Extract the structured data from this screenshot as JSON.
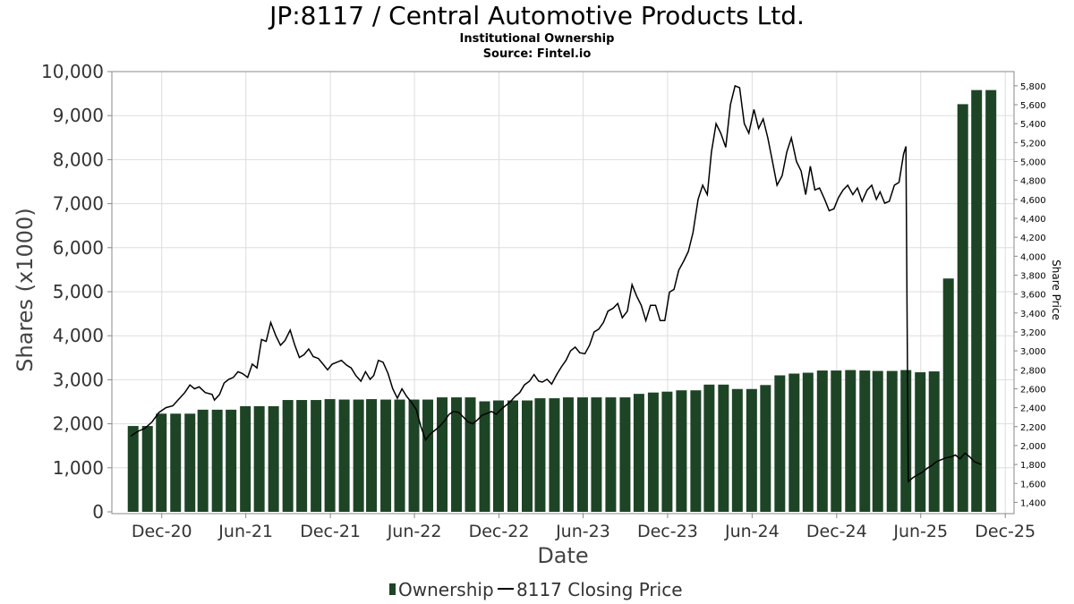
{
  "title": "JP:8117 / Central Automotive Products Ltd.",
  "subtitle": "Institutional Ownership",
  "source": "Source: Fintel.io",
  "colors": {
    "bar": "#1e4426",
    "bar_side": "#b0b0b0",
    "line": "#000000",
    "grid": "#dddddd"
  },
  "chart_data": {
    "type": "bar",
    "xlabel": "Date",
    "ylabel": "Shares (x1000)",
    "y2label": "Share Price",
    "ylim": [
      0,
      10000
    ],
    "y2lim": [
      1300,
      5950
    ],
    "yticks": [
      "0",
      "1,000",
      "2,000",
      "3,000",
      "4,000",
      "5,000",
      "6,000",
      "7,000",
      "8,000",
      "9,000",
      "10,000"
    ],
    "y2ticks": [
      "1,400",
      "1,600",
      "1,800",
      "2,000",
      "2,200",
      "2,400",
      "2,600",
      "2,800",
      "3,000",
      "3,200",
      "3,400",
      "3,600",
      "3,800",
      "4,000",
      "4,200",
      "4,400",
      "4,600",
      "4,800",
      "5,000",
      "5,200",
      "5,400",
      "5,600",
      "5,800"
    ],
    "xrange": [
      "2020-08-15",
      "2025-12-20"
    ],
    "xticks": [
      {
        "label": "Dec-20",
        "date": "2020-12-01"
      },
      {
        "label": "Jun-21",
        "date": "2021-06-01"
      },
      {
        "label": "Dec-21",
        "date": "2021-12-01"
      },
      {
        "label": "Jun-22",
        "date": "2022-06-01"
      },
      {
        "label": "Dec-22",
        "date": "2022-12-01"
      },
      {
        "label": "Jun-23",
        "date": "2023-06-01"
      },
      {
        "label": "Dec-23",
        "date": "2023-12-01"
      },
      {
        "label": "Jun-24",
        "date": "2024-06-01"
      },
      {
        "label": "Dec-24",
        "date": "2024-12-01"
      },
      {
        "label": "Jun-25",
        "date": "2025-06-01"
      },
      {
        "label": "Dec-25",
        "date": "2025-12-01"
      }
    ],
    "legend": {
      "placement": "bottom",
      "ownership": "Ownership",
      "price": "8117 Closing Price"
    },
    "series": [
      {
        "name": "Ownership",
        "type": "bar",
        "points": [
          [
            "2020-09-30",
            1950
          ],
          [
            "2020-10-31",
            1950
          ],
          [
            "2020-11-30",
            2230
          ],
          [
            "2020-12-31",
            2230
          ],
          [
            "2021-01-31",
            2230
          ],
          [
            "2021-02-28",
            2320
          ],
          [
            "2021-03-31",
            2320
          ],
          [
            "2021-04-30",
            2320
          ],
          [
            "2021-05-31",
            2400
          ],
          [
            "2021-06-30",
            2400
          ],
          [
            "2021-07-31",
            2400
          ],
          [
            "2021-08-31",
            2540
          ],
          [
            "2021-09-30",
            2540
          ],
          [
            "2021-10-31",
            2540
          ],
          [
            "2021-11-30",
            2560
          ],
          [
            "2021-12-31",
            2550
          ],
          [
            "2022-01-31",
            2550
          ],
          [
            "2022-02-28",
            2560
          ],
          [
            "2022-03-31",
            2550
          ],
          [
            "2022-04-30",
            2550
          ],
          [
            "2022-05-31",
            2550
          ],
          [
            "2022-06-30",
            2550
          ],
          [
            "2022-07-31",
            2600
          ],
          [
            "2022-08-31",
            2600
          ],
          [
            "2022-09-30",
            2600
          ],
          [
            "2022-10-31",
            2510
          ],
          [
            "2022-11-30",
            2530
          ],
          [
            "2022-12-31",
            2530
          ],
          [
            "2023-01-31",
            2530
          ],
          [
            "2023-02-28",
            2580
          ],
          [
            "2023-03-31",
            2580
          ],
          [
            "2023-04-30",
            2600
          ],
          [
            "2023-05-31",
            2600
          ],
          [
            "2023-06-30",
            2600
          ],
          [
            "2023-07-31",
            2600
          ],
          [
            "2023-08-31",
            2600
          ],
          [
            "2023-09-30",
            2680
          ],
          [
            "2023-10-31",
            2710
          ],
          [
            "2023-11-30",
            2730
          ],
          [
            "2023-12-31",
            2760
          ],
          [
            "2024-01-31",
            2760
          ],
          [
            "2024-02-29",
            2890
          ],
          [
            "2024-03-31",
            2890
          ],
          [
            "2024-04-30",
            2790
          ],
          [
            "2024-05-31",
            2790
          ],
          [
            "2024-06-30",
            2880
          ],
          [
            "2024-07-31",
            3100
          ],
          [
            "2024-08-31",
            3140
          ],
          [
            "2024-09-30",
            3160
          ],
          [
            "2024-10-31",
            3210
          ],
          [
            "2024-11-30",
            3210
          ],
          [
            "2024-12-31",
            3220
          ],
          [
            "2025-01-31",
            3210
          ],
          [
            "2025-02-28",
            3200
          ],
          [
            "2025-03-31",
            3200
          ],
          [
            "2025-04-30",
            3220
          ],
          [
            "2025-05-31",
            3170
          ],
          [
            "2025-06-30",
            3190
          ],
          [
            "2025-07-31",
            5300
          ],
          [
            "2025-08-31",
            9260
          ],
          [
            "2025-09-30",
            9580
          ],
          [
            "2025-10-31",
            9580
          ]
        ]
      },
      {
        "name": "8117 Closing Price",
        "type": "line",
        "axis": "right",
        "points": [
          [
            "2020-09-25",
            2100
          ],
          [
            "2020-10-10",
            2150
          ],
          [
            "2020-10-25",
            2180
          ],
          [
            "2020-11-10",
            2250
          ],
          [
            "2020-11-25",
            2350
          ],
          [
            "2020-12-10",
            2400
          ],
          [
            "2020-12-25",
            2420
          ],
          [
            "2021-01-05",
            2480
          ],
          [
            "2021-01-20",
            2560
          ],
          [
            "2021-01-31",
            2640
          ],
          [
            "2021-02-10",
            2600
          ],
          [
            "2021-02-20",
            2620
          ],
          [
            "2021-03-05",
            2560
          ],
          [
            "2021-03-20",
            2540
          ],
          [
            "2021-03-25",
            2480
          ],
          [
            "2021-04-05",
            2540
          ],
          [
            "2021-04-15",
            2660
          ],
          [
            "2021-04-25",
            2700
          ],
          [
            "2021-05-05",
            2720
          ],
          [
            "2021-05-15",
            2780
          ],
          [
            "2021-05-25",
            2760
          ],
          [
            "2021-06-05",
            2720
          ],
          [
            "2021-06-15",
            2860
          ],
          [
            "2021-06-25",
            2820
          ],
          [
            "2021-07-05",
            3120
          ],
          [
            "2021-07-15",
            3100
          ],
          [
            "2021-07-25",
            3300
          ],
          [
            "2021-08-05",
            3160
          ],
          [
            "2021-08-15",
            3060
          ],
          [
            "2021-08-25",
            3110
          ],
          [
            "2021-09-05",
            3220
          ],
          [
            "2021-09-15",
            3060
          ],
          [
            "2021-09-25",
            2930
          ],
          [
            "2021-10-05",
            2960
          ],
          [
            "2021-10-15",
            3020
          ],
          [
            "2021-10-25",
            2940
          ],
          [
            "2021-11-05",
            2920
          ],
          [
            "2021-11-15",
            2860
          ],
          [
            "2021-11-25",
            2800
          ],
          [
            "2021-12-05",
            2860
          ],
          [
            "2021-12-15",
            2880
          ],
          [
            "2021-12-25",
            2900
          ],
          [
            "2022-01-05",
            2850
          ],
          [
            "2022-01-15",
            2820
          ],
          [
            "2022-01-25",
            2740
          ],
          [
            "2022-02-05",
            2680
          ],
          [
            "2022-02-15",
            2780
          ],
          [
            "2022-02-25",
            2700
          ],
          [
            "2022-03-05",
            2740
          ],
          [
            "2022-03-15",
            2900
          ],
          [
            "2022-03-25",
            2880
          ],
          [
            "2022-04-05",
            2760
          ],
          [
            "2022-04-15",
            2600
          ],
          [
            "2022-04-25",
            2500
          ],
          [
            "2022-05-05",
            2600
          ],
          [
            "2022-05-15",
            2520
          ],
          [
            "2022-05-25",
            2460
          ],
          [
            "2022-06-05",
            2380
          ],
          [
            "2022-06-15",
            2200
          ],
          [
            "2022-06-25",
            2060
          ],
          [
            "2022-07-05",
            2120
          ],
          [
            "2022-07-15",
            2160
          ],
          [
            "2022-07-25",
            2200
          ],
          [
            "2022-08-05",
            2260
          ],
          [
            "2022-08-15",
            2330
          ],
          [
            "2022-08-25",
            2360
          ],
          [
            "2022-09-05",
            2350
          ],
          [
            "2022-09-15",
            2300
          ],
          [
            "2022-09-25",
            2250
          ],
          [
            "2022-10-05",
            2230
          ],
          [
            "2022-10-15",
            2270
          ],
          [
            "2022-10-25",
            2320
          ],
          [
            "2022-11-05",
            2340
          ],
          [
            "2022-11-15",
            2360
          ],
          [
            "2022-11-25",
            2330
          ],
          [
            "2022-12-05",
            2380
          ],
          [
            "2022-12-15",
            2420
          ],
          [
            "2022-12-25",
            2460
          ],
          [
            "2023-01-05",
            2520
          ],
          [
            "2023-01-15",
            2560
          ],
          [
            "2023-01-25",
            2640
          ],
          [
            "2023-02-05",
            2680
          ],
          [
            "2023-02-15",
            2750
          ],
          [
            "2023-02-25",
            2680
          ],
          [
            "2023-03-05",
            2670
          ],
          [
            "2023-03-15",
            2700
          ],
          [
            "2023-03-25",
            2650
          ],
          [
            "2023-04-05",
            2750
          ],
          [
            "2023-04-15",
            2830
          ],
          [
            "2023-04-25",
            2900
          ],
          [
            "2023-05-05",
            3000
          ],
          [
            "2023-05-15",
            3040
          ],
          [
            "2023-05-25",
            2980
          ],
          [
            "2023-06-05",
            2970
          ],
          [
            "2023-06-15",
            3060
          ],
          [
            "2023-06-25",
            3200
          ],
          [
            "2023-07-05",
            3230
          ],
          [
            "2023-07-15",
            3300
          ],
          [
            "2023-07-25",
            3420
          ],
          [
            "2023-08-05",
            3450
          ],
          [
            "2023-08-15",
            3500
          ],
          [
            "2023-08-25",
            3350
          ],
          [
            "2023-09-05",
            3420
          ],
          [
            "2023-09-15",
            3700
          ],
          [
            "2023-09-25",
            3580
          ],
          [
            "2023-10-05",
            3480
          ],
          [
            "2023-10-15",
            3320
          ],
          [
            "2023-10-25",
            3480
          ],
          [
            "2023-11-05",
            3480
          ],
          [
            "2023-11-15",
            3320
          ],
          [
            "2023-11-25",
            3320
          ],
          [
            "2023-12-05",
            3620
          ],
          [
            "2023-12-15",
            3650
          ],
          [
            "2023-12-25",
            3850
          ],
          [
            "2024-01-05",
            3950
          ],
          [
            "2024-01-15",
            4050
          ],
          [
            "2024-01-25",
            4250
          ],
          [
            "2024-02-05",
            4600
          ],
          [
            "2024-02-15",
            4750
          ],
          [
            "2024-02-25",
            4650
          ],
          [
            "2024-03-05",
            5100
          ],
          [
            "2024-03-15",
            5400
          ],
          [
            "2024-03-25",
            5300
          ],
          [
            "2024-04-05",
            5150
          ],
          [
            "2024-04-15",
            5600
          ],
          [
            "2024-04-25",
            5800
          ],
          [
            "2024-05-05",
            5780
          ],
          [
            "2024-05-15",
            5400
          ],
          [
            "2024-05-25",
            5300
          ],
          [
            "2024-06-05",
            5550
          ],
          [
            "2024-06-15",
            5350
          ],
          [
            "2024-06-25",
            5450
          ],
          [
            "2024-07-05",
            5250
          ],
          [
            "2024-07-15",
            5000
          ],
          [
            "2024-07-25",
            4750
          ],
          [
            "2024-08-05",
            4850
          ],
          [
            "2024-08-15",
            5100
          ],
          [
            "2024-08-25",
            5250
          ],
          [
            "2024-09-05",
            5000
          ],
          [
            "2024-09-15",
            4900
          ],
          [
            "2024-09-25",
            4650
          ],
          [
            "2024-10-05",
            4950
          ],
          [
            "2024-10-15",
            4700
          ],
          [
            "2024-10-25",
            4720
          ],
          [
            "2024-11-05",
            4600
          ],
          [
            "2024-11-15",
            4480
          ],
          [
            "2024-11-25",
            4500
          ],
          [
            "2024-12-05",
            4620
          ],
          [
            "2024-12-15",
            4700
          ],
          [
            "2024-12-25",
            4750
          ],
          [
            "2025-01-05",
            4650
          ],
          [
            "2025-01-15",
            4720
          ],
          [
            "2025-01-25",
            4580
          ],
          [
            "2025-02-05",
            4700
          ],
          [
            "2025-02-15",
            4750
          ],
          [
            "2025-02-25",
            4600
          ],
          [
            "2025-03-05",
            4680
          ],
          [
            "2025-03-15",
            4560
          ],
          [
            "2025-03-25",
            4580
          ],
          [
            "2025-04-05",
            4750
          ],
          [
            "2025-04-15",
            4780
          ],
          [
            "2025-04-25",
            5080
          ],
          [
            "2025-04-30",
            5160
          ],
          [
            "2025-05-05",
            1620
          ],
          [
            "2025-05-15",
            1660
          ],
          [
            "2025-05-25",
            1690
          ],
          [
            "2025-06-05",
            1720
          ],
          [
            "2025-06-15",
            1760
          ],
          [
            "2025-06-25",
            1790
          ],
          [
            "2025-07-05",
            1830
          ],
          [
            "2025-07-15",
            1850
          ],
          [
            "2025-07-25",
            1870
          ],
          [
            "2025-08-05",
            1880
          ],
          [
            "2025-08-15",
            1900
          ],
          [
            "2025-08-25",
            1860
          ],
          [
            "2025-09-05",
            1920
          ],
          [
            "2025-09-15",
            1880
          ],
          [
            "2025-09-25",
            1830
          ],
          [
            "2025-10-10",
            1800
          ]
        ]
      }
    ]
  }
}
